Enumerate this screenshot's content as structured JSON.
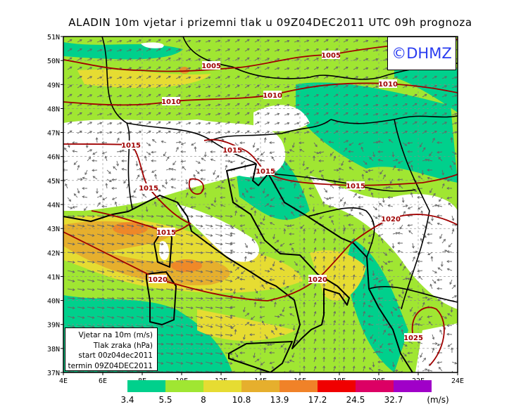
{
  "title": "ALADIN  10m  vjetar  i  prizemni  tlak  u  09Z04DEC2011  UTC  09h  prognoza",
  "logo": "©DHMZ",
  "legend_box": {
    "line1": "Vjetar na 10m (m/s)",
    "line2": "Tlak zraka (hPa)",
    "line3": "start 00z04dec2011",
    "line4": "termin 09Z04DEC2011"
  },
  "axes": {
    "lon_ticks": [
      "4E",
      "6E",
      "8E",
      "10E",
      "12E",
      "14E",
      "16E",
      "18E",
      "20E",
      "22E",
      "24E"
    ],
    "lat_ticks": [
      "51N",
      "50N",
      "49N",
      "48N",
      "47N",
      "46N",
      "45N",
      "44N",
      "43N",
      "42N",
      "41N",
      "40N",
      "39N",
      "38N",
      "37N"
    ],
    "lon_range": [
      4,
      24
    ],
    "lat_range": [
      37,
      51
    ]
  },
  "colorbar": {
    "unit": "(m/s)",
    "levels": [
      "3.4",
      "5.5",
      "8",
      "10.8",
      "13.9",
      "17.2",
      "24.5",
      "32.7"
    ],
    "colors": [
      "#00d08c",
      "#a0e632",
      "#e6dc32",
      "#e6af2d",
      "#f08228",
      "#f00000",
      "#dc0064",
      "#a000c8"
    ]
  },
  "isobar_labels": [
    "1005",
    "1005",
    "1010",
    "1010",
    "1010",
    "1015",
    "1015",
    "1015",
    "1015",
    "1015",
    "1015",
    "1020",
    "1020",
    "1020",
    "1025"
  ],
  "colors": {
    "isobar": "#a00000",
    "coast": "#000000",
    "wind_arrow": "#666666"
  }
}
